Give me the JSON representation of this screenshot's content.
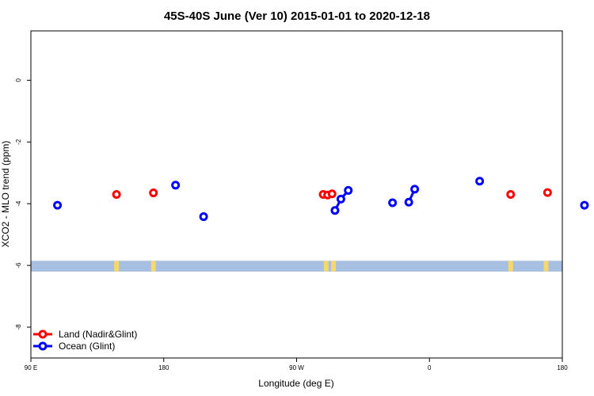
{
  "chart_data": {
    "type": "scatter",
    "title": "45S-40S June (Ver 10)   2015-01-01 to 2020-12-18",
    "xlabel": "Longitude (deg E)",
    "ylabel": "XCO2 - MLO trend (ppm)",
    "xlim": [
      90,
      450
    ],
    "ylim": [
      -9,
      1.6
    ],
    "x_ticks": [
      {
        "value": 90,
        "label": "90 E"
      },
      {
        "value": 180,
        "label": "180"
      },
      {
        "value": 270,
        "label": "90 W"
      },
      {
        "value": 360,
        "label": "0"
      },
      {
        "value": 450,
        "label": "180"
      }
    ],
    "y_ticks": [
      {
        "value": 0,
        "label": "0"
      },
      {
        "value": -2,
        "label": "-2"
      },
      {
        "value": -4,
        "label": "-4"
      },
      {
        "value": -6,
        "label": "-6"
      },
      {
        "value": -8,
        "label": "-8"
      }
    ],
    "series": [
      {
        "name": "Land (Nadir&Glint)",
        "color": "#ff0000",
        "points": [
          {
            "x": 148,
            "y": -3.7
          },
          {
            "x": 173,
            "y": -3.65
          },
          {
            "x": 288,
            "y": -3.7
          },
          {
            "x": 291,
            "y": -3.72
          },
          {
            "x": 294,
            "y": -3.68
          },
          {
            "x": 415,
            "y": -3.7
          },
          {
            "x": 440,
            "y": -3.64
          }
        ],
        "lines": []
      },
      {
        "name": "Ocean (Glint)",
        "color": "#0000ff",
        "points": [
          {
            "x": 108,
            "y": -4.05
          },
          {
            "x": 188,
            "y": -3.4
          },
          {
            "x": 207,
            "y": -4.42
          },
          {
            "x": 296,
            "y": -4.22
          },
          {
            "x": 300,
            "y": -3.85
          },
          {
            "x": 305,
            "y": -3.57
          },
          {
            "x": 335,
            "y": -3.97
          },
          {
            "x": 346,
            "y": -3.95
          },
          {
            "x": 350,
            "y": -3.53
          },
          {
            "x": 394,
            "y": -3.27
          },
          {
            "x": 465,
            "y": -4.05
          }
        ],
        "lines": [
          [
            {
              "x": 296,
              "y": -4.22
            },
            {
              "x": 300,
              "y": -3.85
            },
            {
              "x": 305,
              "y": -3.57
            }
          ],
          [
            {
              "x": 346,
              "y": -3.95
            },
            {
              "x": 350,
              "y": -3.53
            }
          ]
        ]
      }
    ],
    "background_band": {
      "y_from": -6.2,
      "y_to": -5.85,
      "color": "#a7bfe0",
      "land_color": "#f7d86a",
      "land_x": [
        148,
        173,
        290,
        295,
        415,
        439
      ]
    },
    "grid": false,
    "legend_placement": "bottom-left"
  }
}
